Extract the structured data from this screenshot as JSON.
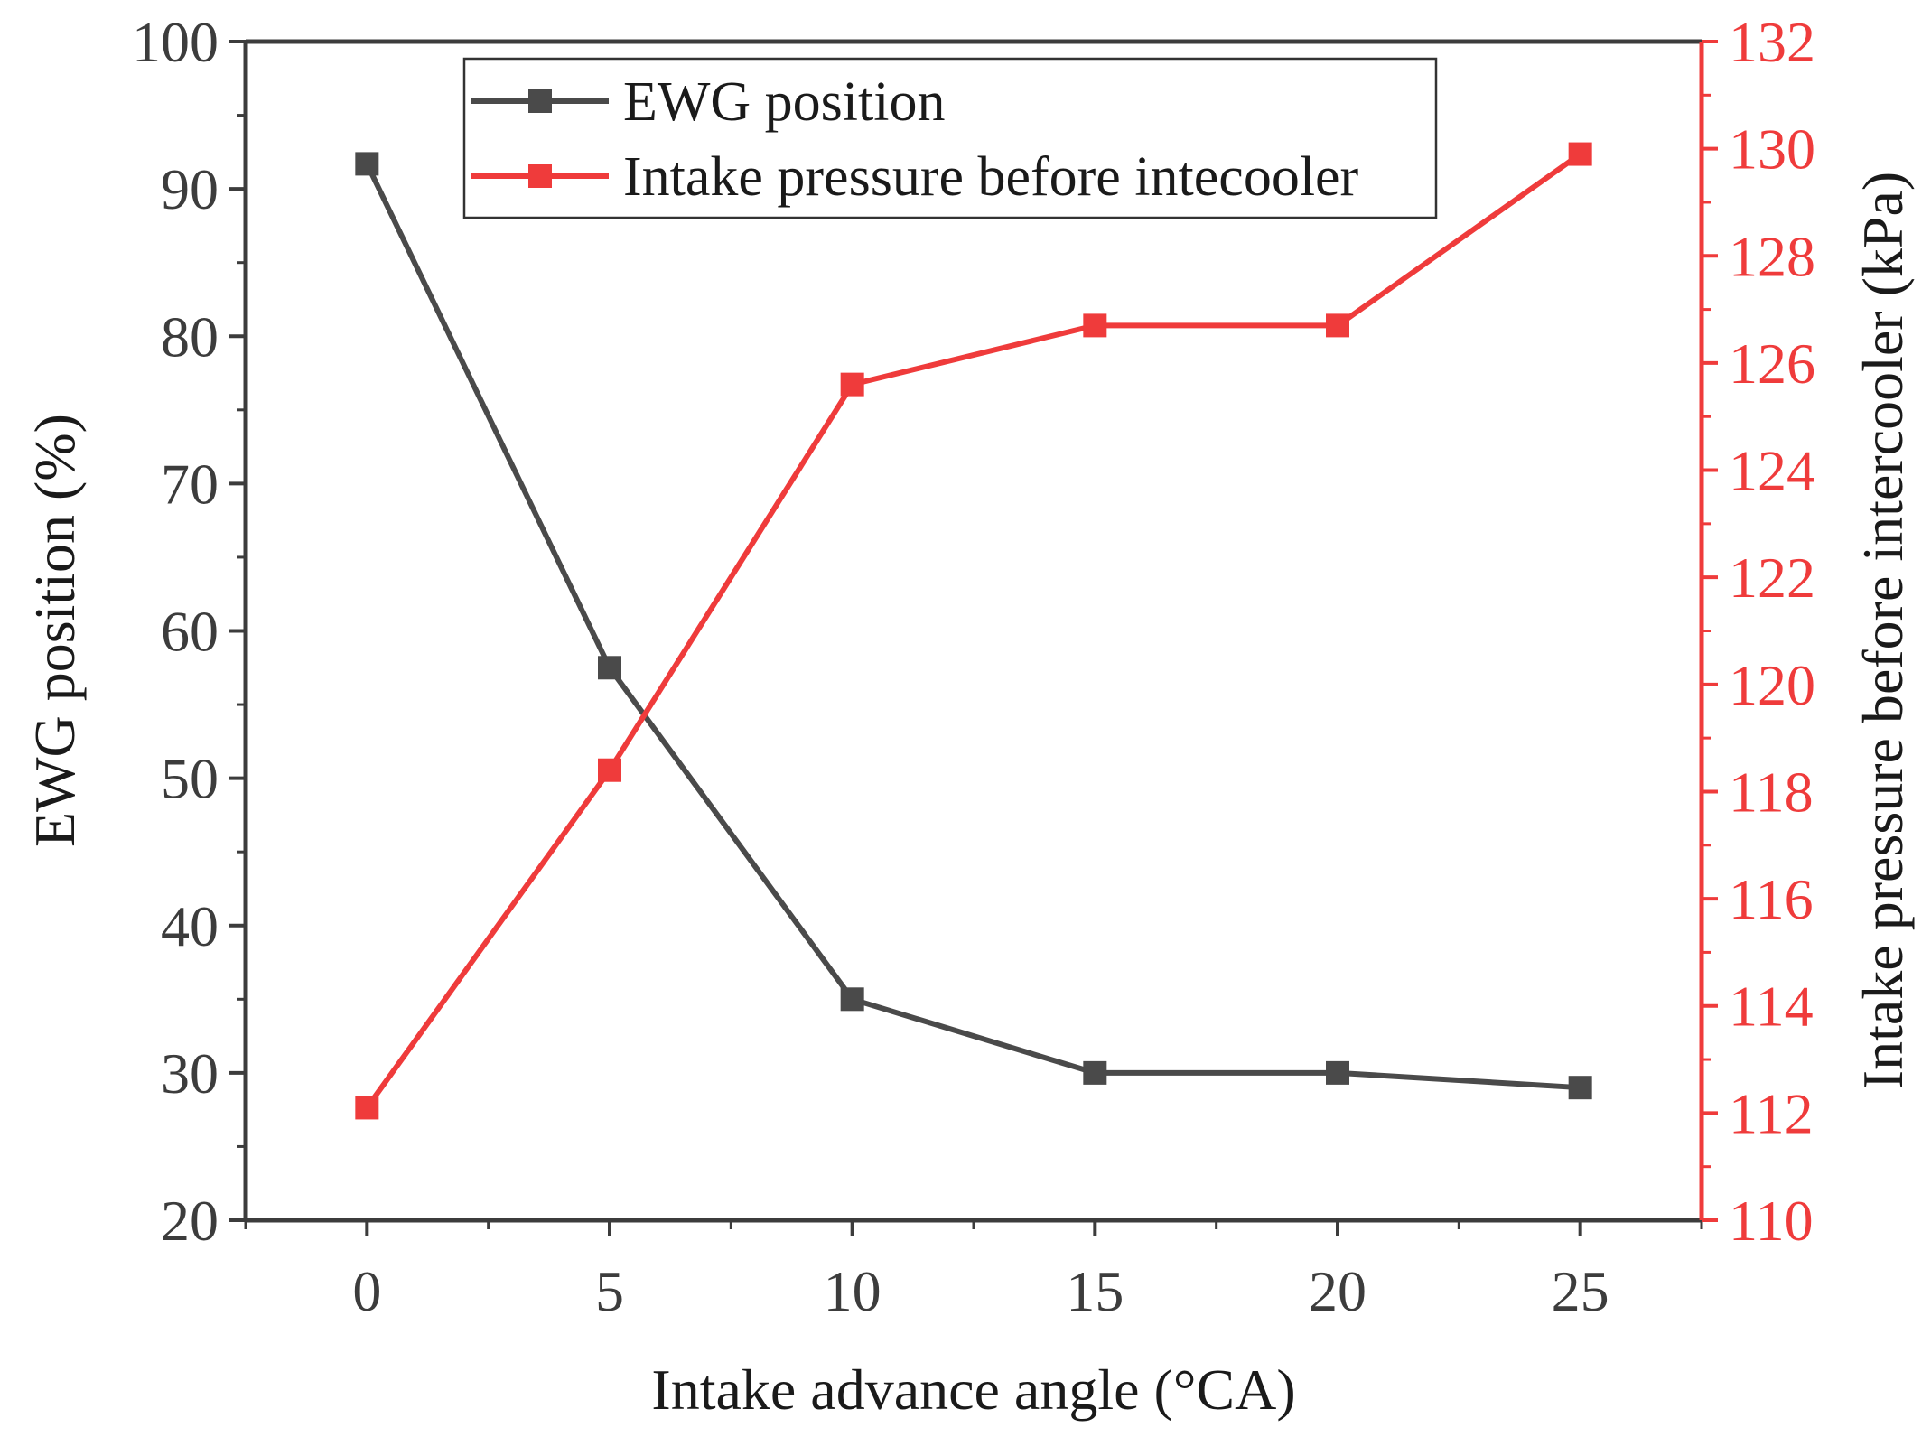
{
  "chart_data": {
    "type": "line",
    "x": [
      0,
      5,
      10,
      15,
      20,
      25
    ],
    "xlabel": "Intake advance angle (°CA)",
    "x_ticks": [
      "0",
      "5",
      "10",
      "15",
      "20",
      "25"
    ],
    "xlim": [
      -2.5,
      27.5
    ],
    "y_left": {
      "label": "EWG position (%)",
      "lim": [
        20,
        100
      ],
      "ticks": [
        "20",
        "30",
        "40",
        "50",
        "60",
        "70",
        "80",
        "90",
        "100"
      ],
      "color": "#3c3c3c"
    },
    "y_right": {
      "label": "Intake pressure before intercooler (kPa)",
      "lim": [
        110,
        132
      ],
      "ticks": [
        "110",
        "112",
        "114",
        "116",
        "118",
        "120",
        "122",
        "124",
        "126",
        "128",
        "130",
        "132"
      ],
      "color": "#ef3b3b"
    },
    "series": [
      {
        "name": "EWG position",
        "axis": "left",
        "color": "#4a4a4a",
        "values": [
          91.7,
          57.5,
          35.0,
          30.0,
          30.0,
          29.0
        ]
      },
      {
        "name": "Intake pressure before intecooler",
        "axis": "right",
        "color": "#ef3b3b",
        "values": [
          112.1,
          118.4,
          125.6,
          126.7,
          126.7,
          129.9
        ]
      }
    ],
    "legend": {
      "position": "top-center",
      "entries": [
        "EWG position",
        "Intake pressure before intecooler"
      ]
    }
  }
}
